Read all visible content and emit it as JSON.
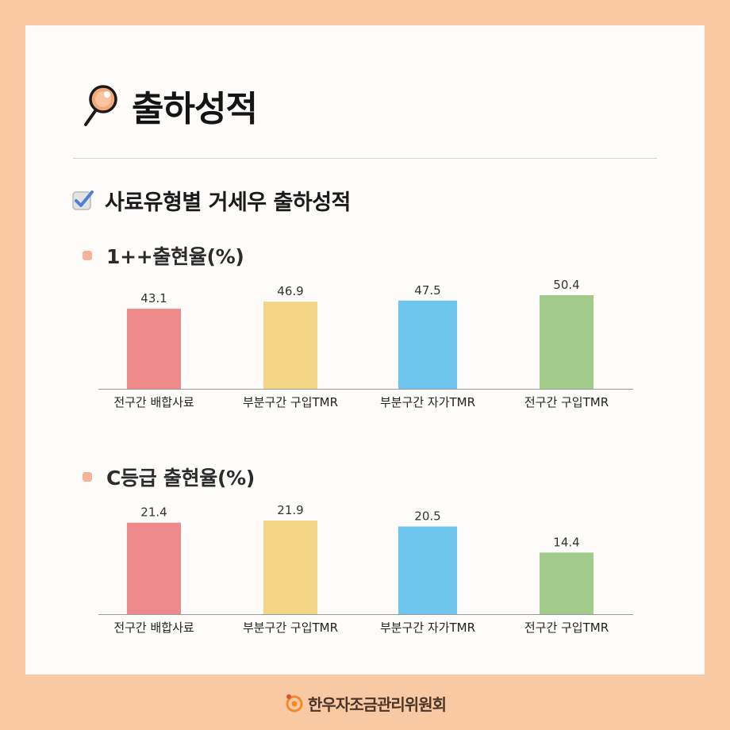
{
  "page": {
    "title": "출하성적"
  },
  "section": {
    "title": "사료유형별 거세우 출하성적"
  },
  "footer": {
    "logo_text": "한우자조금관리위원회"
  },
  "colors": {
    "background": "#f9c9a4",
    "bullet": "#f4b49a",
    "red": "#ef8a8b",
    "yellow": "#f5d586",
    "blue": "#6ec5ee",
    "green": "#a3cb8b"
  },
  "chart_data": [
    {
      "type": "bar",
      "title": "1++출현율(%)",
      "categories": [
        "전구간 배합사료",
        "부분구간 구입TMR",
        "부분구간 자가TMR",
        "전구간 구입TMR"
      ],
      "values": [
        43.1,
        46.9,
        47.5,
        50.4
      ],
      "value_labels": [
        "43.1",
        "46.9",
        "47.5",
        "50.4"
      ],
      "colors": [
        "#ef8a8b",
        "#f5d586",
        "#6ec5ee",
        "#a3cb8b"
      ],
      "ylim": [
        0,
        50.4
      ],
      "grid": false,
      "xlabel": "",
      "ylabel": ""
    },
    {
      "type": "bar",
      "title": "C등급 출현율(%)",
      "categories": [
        "전구간 배합사료",
        "부분구간 구입TMR",
        "부분구간 자가TMR",
        "전구간 구입TMR"
      ],
      "values": [
        21.4,
        21.9,
        20.5,
        14.4
      ],
      "value_labels": [
        "21.4",
        "21.9",
        "20.5",
        "14.4"
      ],
      "colors": [
        "#ef8a8b",
        "#f5d586",
        "#6ec5ee",
        "#a3cb8b"
      ],
      "ylim": [
        0,
        21.9
      ],
      "grid": false,
      "xlabel": "",
      "ylabel": ""
    }
  ]
}
